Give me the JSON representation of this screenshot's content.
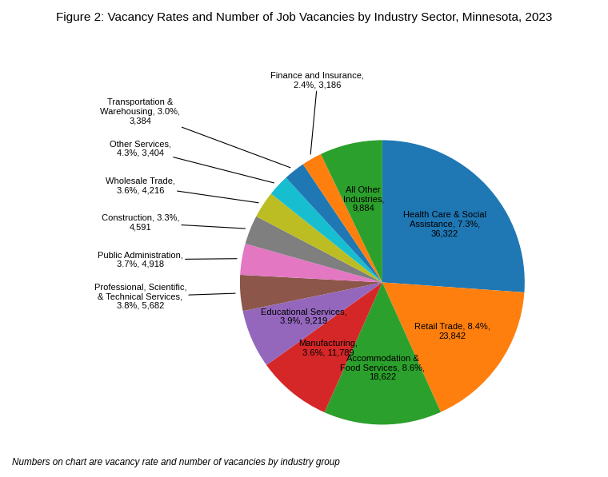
{
  "chart_data": {
    "type": "pie",
    "title": "Figure 2: Vacancy Rates and Number of Job Vacancies by Industry Sector, Minnesota, 2023",
    "annotations": [
      "Numbers on chart are vacancy rate and number of vacancies by industry group"
    ],
    "categories": [
      "Health Care & Social\nAssistance, 7.3%,\n36,322",
      "Retail Trade, 8.4%,\n23,842",
      "Accommodation &\nFood Services, 8.6%,\n18,622",
      "Manufacturing,\n3.6%, 11,789",
      "Educational Services,\n3.9%, 9,219",
      "Professional, Scientific,\n& Technical Services,\n3.8%, 5,682",
      "Public Administration,\n3.7%, 4,918",
      "Construction, 3.3%,\n4,591",
      "Wholesale Trade,\n3.6%, 4,216",
      "Other Services,\n4.3%, 3,404",
      "Transportation &\nWarehousing, 3.0%,\n3,384",
      "Finance and Insurance,\n2.4%, 3,186",
      "All Other\nIndustries,\n9,884"
    ],
    "values": [
      36322,
      23842,
      18622,
      11789,
      9219,
      5682,
      4918,
      4591,
      4216,
      3404,
      3384,
      3186,
      9884
    ]
  }
}
